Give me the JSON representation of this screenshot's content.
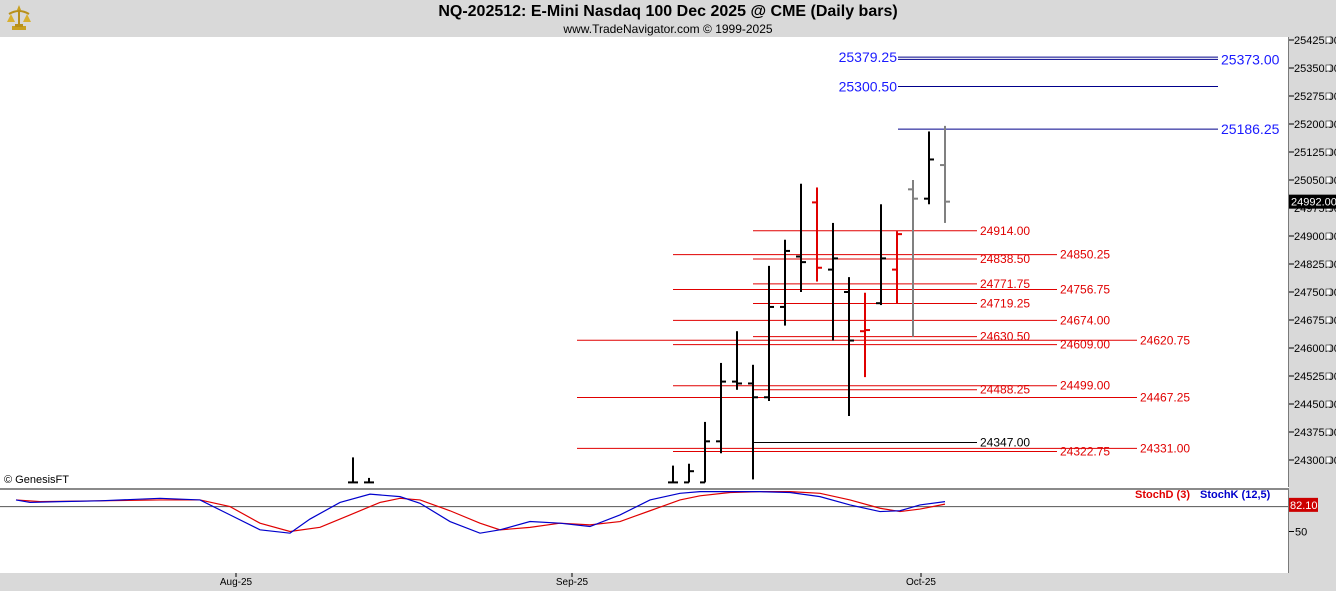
{
  "header": {
    "title": "NQ-202512:  E-Mini Nasdaq 100 Dec 2025 @ CME  (Daily bars)",
    "subtitle": "www.TradeNavigator.com © 1999-2025",
    "logo_icon": "gold-trophy-logo-icon"
  },
  "copyright": "© GenesisFT",
  "stoch_legend": {
    "stochd": "StochD (3)",
    "stochk": "StochK (12,5)",
    "stochd_color": "#e00000",
    "stochk_color": "#0000cc"
  },
  "chart_data": [
    {
      "type": "candlestick",
      "title": "NQ-202512:  E-Mini Nasdaq 100 Dec 2025 @ CME  (Daily bars)",
      "y_ticks": [
        24300.0,
        24375.0,
        24450.0,
        24525.0,
        24600.0,
        24675.0,
        24750.0,
        24825.0,
        24900.0,
        24975.0,
        25050.0,
        25125.0,
        25200.0,
        25275.0,
        25350.0,
        25425.0
      ],
      "ylim": [
        24240,
        25432
      ],
      "last_price": "24992.00",
      "x_labels": [
        {
          "label": "Aug-25",
          "x": 236
        },
        {
          "label": "Sep-25",
          "x": 572
        },
        {
          "label": "Oct-25",
          "x": 921
        }
      ],
      "bars": [
        {
          "i": 0,
          "x": 353,
          "o": 24240,
          "h": 24307,
          "l": 24240,
          "c": 24240,
          "color": "#000000"
        },
        {
          "i": 1,
          "x": 369,
          "o": 24240,
          "h": 24252,
          "l": 24240,
          "c": 24240,
          "color": "#000000"
        },
        {
          "i": 2,
          "x": 673,
          "o": 24240,
          "h": 24285,
          "l": 24240,
          "c": 24240,
          "color": "#000000"
        },
        {
          "i": 3,
          "x": 689,
          "o": 24240,
          "h": 24290,
          "l": 24240,
          "c": 24270,
          "color": "#000000"
        },
        {
          "i": 4,
          "x": 705,
          "o": 24240,
          "h": 24402,
          "l": 24240,
          "c": 24350,
          "color": "#000000"
        },
        {
          "i": 5,
          "x": 721,
          "o": 24350,
          "h": 24560,
          "l": 24318,
          "c": 24510,
          "color": "#000000"
        },
        {
          "i": 6,
          "x": 737,
          "o": 24510,
          "h": 24645,
          "l": 24488,
          "c": 24505,
          "color": "#000000"
        },
        {
          "i": 7,
          "x": 753,
          "o": 24505,
          "h": 24555,
          "l": 24248,
          "c": 24468,
          "color": "#000000"
        },
        {
          "i": 8,
          "x": 769,
          "o": 24468,
          "h": 24820,
          "l": 24458,
          "c": 24710,
          "color": "#000000"
        },
        {
          "i": 9,
          "x": 785,
          "o": 24710,
          "h": 24890,
          "l": 24660,
          "c": 24860,
          "color": "#000000"
        },
        {
          "i": 10,
          "x": 801,
          "o": 24845,
          "h": 25040,
          "l": 24750,
          "c": 24830,
          "color": "#000000"
        },
        {
          "i": 11,
          "x": 817,
          "o": 24990,
          "h": 25030,
          "l": 24778,
          "c": 24815,
          "color": "#e00000"
        },
        {
          "i": 12,
          "x": 833,
          "o": 24810,
          "h": 24935,
          "l": 24620,
          "c": 24840,
          "color": "#000000"
        },
        {
          "i": 13,
          "x": 849,
          "o": 24750,
          "h": 24790,
          "l": 24418,
          "c": 24620,
          "color": "#000000"
        },
        {
          "i": 14,
          "x": 865,
          "o": 24645,
          "h": 24748,
          "l": 24522,
          "c": 24648,
          "color": "#e00000"
        },
        {
          "i": 15,
          "x": 881,
          "o": 24720,
          "h": 24985,
          "l": 24715,
          "c": 24840,
          "color": "#000000"
        },
        {
          "i": 16,
          "x": 897,
          "o": 24810,
          "h": 24913,
          "l": 24720,
          "c": 24905,
          "color": "#e00000"
        },
        {
          "i": 17,
          "x": 913,
          "o": 25025,
          "h": 25050,
          "l": 24630,
          "c": 25000,
          "color": "#808080"
        },
        {
          "i": 18,
          "x": 929,
          "o": 25000,
          "h": 25180,
          "l": 24985,
          "c": 25105,
          "color": "#000000"
        },
        {
          "i": 19,
          "x": 945,
          "o": 25090,
          "h": 25195,
          "l": 24935,
          "c": 24992,
          "color": "#808080"
        }
      ],
      "levels": [
        {
          "label": "25379.25",
          "price": 25379.25,
          "color": "#1a1aff",
          "line_color": "#00008b",
          "label_side": "left"
        },
        {
          "label": "25373.00",
          "price": 25373.0,
          "color": "#1a1aff",
          "line_color": "#00008b",
          "label_side": "right"
        },
        {
          "label": "25300.50",
          "price": 25300.5,
          "color": "#1a1aff",
          "line_color": "#00008b",
          "label_side": "left"
        },
        {
          "label": "25186.25",
          "price": 25186.25,
          "color": "#1a1aff",
          "line_color": "#00008b",
          "label_side": "right"
        },
        {
          "label": "24914.00",
          "price": 24914.0,
          "color": "#e00000",
          "line_color": "#e00000",
          "label_side": "mid1"
        },
        {
          "label": "24850.25",
          "price": 24850.25,
          "color": "#e00000",
          "line_color": "#e00000",
          "label_side": "mid2"
        },
        {
          "label": "24838.50",
          "price": 24838.5,
          "color": "#e00000",
          "line_color": "#e00000",
          "label_side": "mid1"
        },
        {
          "label": "24771.75",
          "price": 24771.75,
          "color": "#e00000",
          "line_color": "#e00000",
          "label_side": "mid1"
        },
        {
          "label": "24756.75",
          "price": 24756.75,
          "color": "#e00000",
          "line_color": "#e00000",
          "label_side": "mid2"
        },
        {
          "label": "24719.25",
          "price": 24719.25,
          "color": "#e00000",
          "line_color": "#e00000",
          "label_side": "mid1"
        },
        {
          "label": "24674.00",
          "price": 24674.0,
          "color": "#e00000",
          "line_color": "#e00000",
          "label_side": "mid2"
        },
        {
          "label": "24630.50",
          "price": 24630.5,
          "color": "#e00000",
          "line_color": "#e00000",
          "label_side": "mid1"
        },
        {
          "label": "24620.75",
          "price": 24620.75,
          "color": "#e00000",
          "line_color": "#e00000",
          "label_side": "mid3"
        },
        {
          "label": "24609.00",
          "price": 24609.0,
          "color": "#e00000",
          "line_color": "#e00000",
          "label_side": "mid2"
        },
        {
          "label": "24499.00",
          "price": 24499.0,
          "color": "#e00000",
          "line_color": "#e00000",
          "label_side": "mid2"
        },
        {
          "label": "24488.25",
          "price": 24488.25,
          "color": "#e00000",
          "line_color": "#e00000",
          "label_side": "mid1"
        },
        {
          "label": "24467.25",
          "price": 24467.25,
          "color": "#e00000",
          "line_color": "#e00000",
          "label_side": "mid3"
        },
        {
          "label": "24347.00",
          "price": 24347.0,
          "color": "#000000",
          "line_color": "#000000",
          "label_side": "mid1"
        },
        {
          "label": "24331.00",
          "price": 24331.0,
          "color": "#e00000",
          "line_color": "#e00000",
          "label_side": "mid3"
        },
        {
          "label": "24322.75",
          "price": 24322.75,
          "color": "#e00000",
          "line_color": "#e00000",
          "label_side": "mid2"
        }
      ]
    },
    {
      "type": "line",
      "title": "",
      "y_ticks": [
        50
      ],
      "ylim": [
        0,
        100
      ],
      "last_value": "82.10",
      "reference_line": 80,
      "series": [
        {
          "name": "StochD (3)",
          "color": "#e00000",
          "x": [
            16,
            40,
            100,
            160,
            200,
            230,
            260,
            290,
            320,
            350,
            380,
            400,
            420,
            450,
            480,
            500,
            530,
            560,
            590,
            620,
            650,
            680,
            700,
            730,
            760,
            790,
            820,
            850,
            880,
            900,
            920,
            945
          ],
          "y": [
            88,
            86,
            87,
            88,
            88,
            80,
            60,
            50,
            55,
            70,
            85,
            90,
            88,
            75,
            60,
            52,
            55,
            60,
            58,
            62,
            75,
            88,
            93,
            97,
            98,
            98,
            96,
            88,
            78,
            74,
            77,
            83
          ]
        },
        {
          "name": "StochK (12,5)",
          "color": "#0000cc",
          "x": [
            16,
            30,
            60,
            100,
            160,
            200,
            230,
            260,
            290,
            310,
            340,
            370,
            400,
            420,
            450,
            480,
            500,
            530,
            560,
            590,
            620,
            650,
            680,
            700,
            730,
            760,
            790,
            820,
            850,
            880,
            900,
            920,
            945
          ],
          "y": [
            88,
            85,
            86,
            87,
            90,
            88,
            70,
            52,
            48,
            65,
            85,
            95,
            92,
            84,
            62,
            48,
            52,
            62,
            60,
            56,
            70,
            88,
            96,
            98,
            98,
            98,
            97,
            92,
            82,
            74,
            75,
            82,
            86
          ]
        }
      ]
    }
  ]
}
